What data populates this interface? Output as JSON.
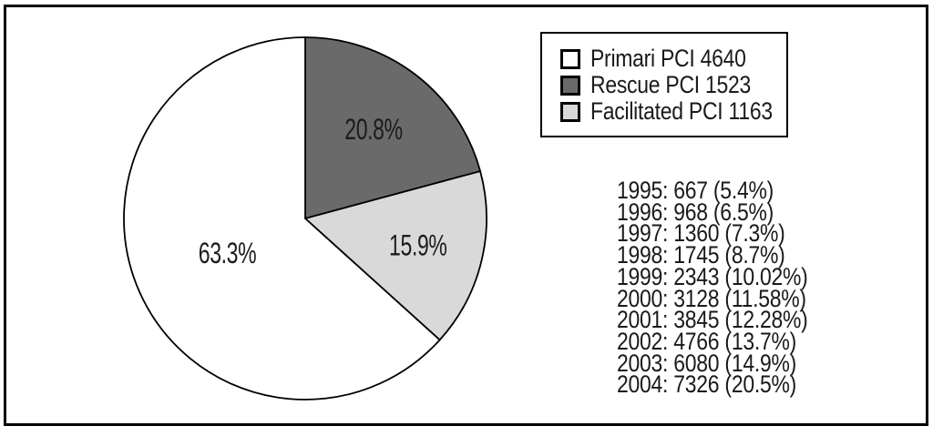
{
  "figure": {
    "background": "#ffffff",
    "frame_border_color": "#000000",
    "text_color": "#1a1a1a"
  },
  "chart_data": {
    "type": "pie",
    "title": "",
    "start_angle_from_top_deg": 0,
    "direction": "clockwise",
    "slices": [
      {
        "name": "Rescue PCI",
        "value": 1523,
        "percent": 20.8,
        "data_label": "20.8%",
        "color": "#6a6a6a"
      },
      {
        "name": "Facilitated PCI",
        "value": 1163,
        "percent": 15.9,
        "data_label": "15.9%",
        "color": "#d9d9d9"
      },
      {
        "name": "Primari PCI",
        "value": 4640,
        "percent": 63.3,
        "data_label": "63.3%",
        "color": "#ffffff"
      }
    ],
    "legend": {
      "position": "top-right",
      "items": [
        {
          "label": "Primari PCI 4640",
          "color": "#ffffff"
        },
        {
          "label": "Rescue PCI 1523",
          "color": "#6a6a6a"
        },
        {
          "label": "Facilitated PCI 1163",
          "color": "#d9d9d9"
        }
      ]
    },
    "annotations": [
      {
        "year": "1995",
        "value": "667",
        "percent": "5.4%",
        "text": "1995: 667 (5.4%)"
      },
      {
        "year": "1996",
        "value": "968",
        "percent": "6.5%",
        "text": "1996: 968 (6.5%)"
      },
      {
        "year": "1997",
        "value": "1360",
        "percent": "7.3%",
        "text": "1997: 1360 (7.3%)"
      },
      {
        "year": "1998",
        "value": "1745",
        "percent": "8.7%",
        "text": "1998: 1745 (8.7%)"
      },
      {
        "year": "1999",
        "value": "2343",
        "percent": "10.02%",
        "text": "1999: 2343 (10.02%)"
      },
      {
        "year": "2000",
        "value": "3128",
        "percent": "11.58%",
        "text": "2000: 3128 (11.58%)"
      },
      {
        "year": "2001",
        "value": "3845",
        "percent": "12.28%",
        "text": "2001: 3845 (12.28%)"
      },
      {
        "year": "2002",
        "value": "4766",
        "percent": "13.7%",
        "text": "2002: 4766 (13.7%)"
      },
      {
        "year": "2003",
        "value": "6080",
        "percent": "14.9%",
        "text": "2003: 6080 (14.9%)"
      },
      {
        "year": "2004",
        "value": "7326",
        "percent": "20.5%",
        "text": "2004: 7326 (20.5%)"
      }
    ]
  }
}
